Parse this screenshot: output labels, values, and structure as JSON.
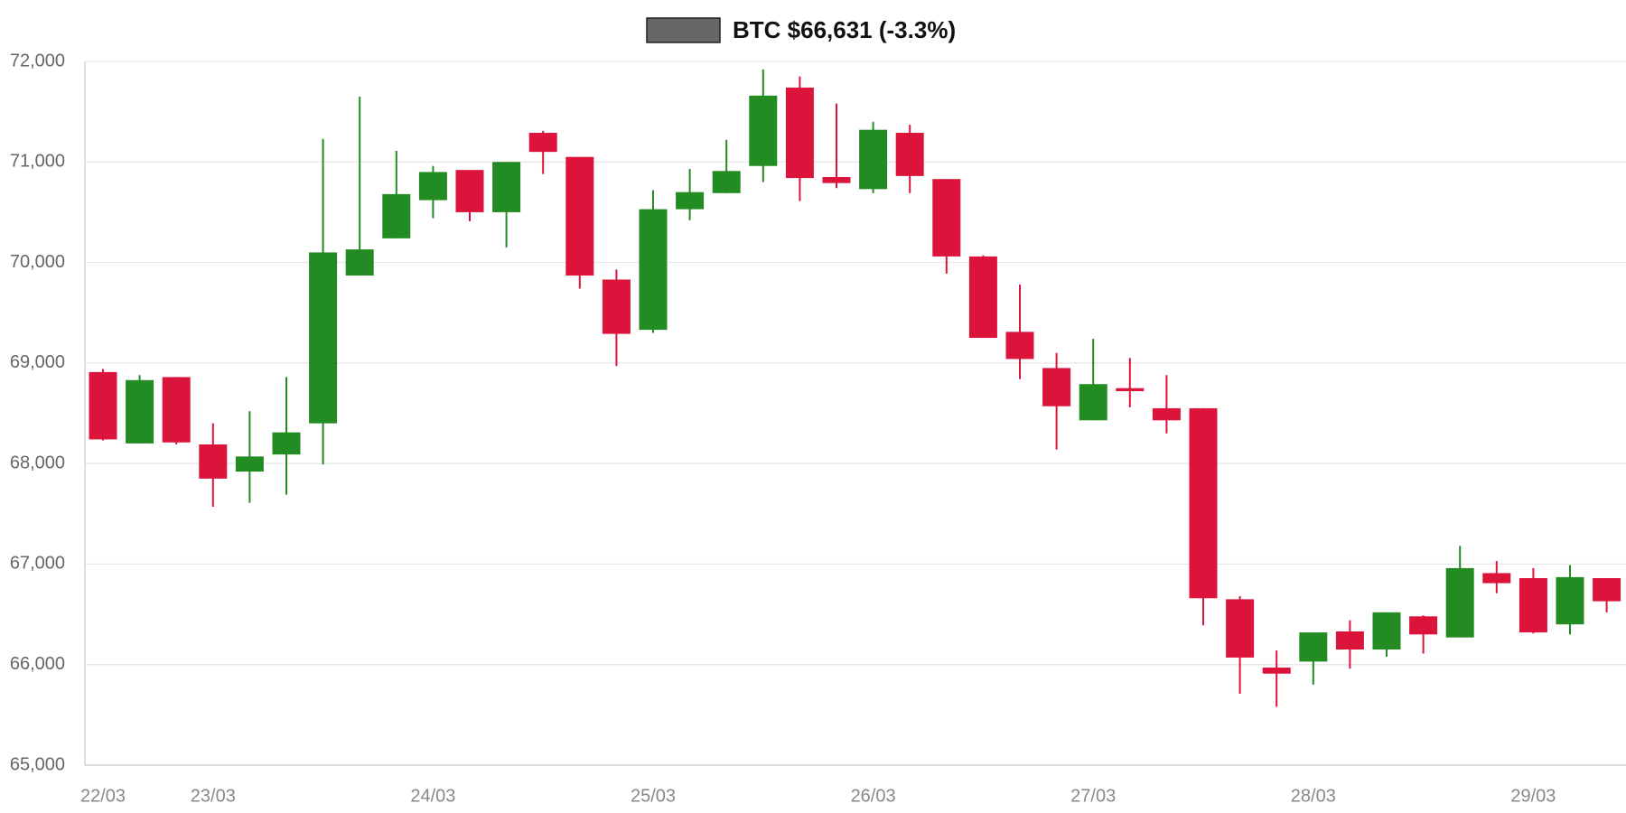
{
  "chart_data": {
    "type": "candlestick",
    "series": [
      {
        "name": "BTC $66,631 (-3.3%)",
        "color": "#666666",
        "open": [
          68910,
          68200,
          68860,
          68190,
          67920,
          68090,
          68400,
          69870,
          70240,
          70620,
          70920,
          70500,
          71290,
          71050,
          69830,
          69330,
          70530,
          70690,
          70960,
          71740,
          70850,
          70730,
          71290,
          70830,
          70060,
          69310,
          68950,
          68430,
          68750,
          68550,
          68550,
          66650,
          65970,
          66030,
          66330,
          66150,
          66480,
          66270,
          66910,
          66860,
          66400,
          66860
        ],
        "high": [
          68940,
          68880,
          68860,
          68400,
          68520,
          68860,
          71230,
          71650,
          71110,
          70960,
          70920,
          71000,
          71310,
          71050,
          69930,
          70720,
          70930,
          71220,
          71920,
          71850,
          71580,
          71400,
          71370,
          70830,
          70070,
          69780,
          69100,
          69240,
          69050,
          68880,
          68550,
          66680,
          66140,
          66320,
          66440,
          66520,
          66490,
          67180,
          67030,
          66960,
          66990,
          66860
        ],
        "low": [
          68230,
          68200,
          68190,
          67570,
          67610,
          67690,
          67990,
          69870,
          70240,
          70440,
          70410,
          70150,
          70880,
          69740,
          68970,
          69300,
          70420,
          70690,
          70800,
          70610,
          70740,
          70690,
          70690,
          69890,
          69250,
          68840,
          68140,
          68430,
          68560,
          68300,
          66390,
          65710,
          65580,
          65800,
          65960,
          66080,
          66110,
          66270,
          66710,
          66310,
          66300,
          66520
        ],
        "close": [
          68240,
          68830,
          68210,
          67850,
          68070,
          68310,
          70100,
          70130,
          70680,
          70900,
          70500,
          71000,
          71100,
          69870,
          69290,
          70530,
          70700,
          70910,
          71660,
          70840,
          70790,
          71320,
          70860,
          70060,
          69250,
          69040,
          68570,
          68790,
          68720,
          68430,
          66660,
          66070,
          65910,
          66320,
          66150,
          66520,
          66300,
          66960,
          66810,
          66320,
          66870,
          66630
        ]
      }
    ],
    "up_color": "#228b22",
    "down_color": "#dc143c",
    "categories": [
      "22/03",
      null,
      null,
      "23/03",
      null,
      null,
      null,
      null,
      null,
      "24/03",
      null,
      null,
      null,
      null,
      null,
      "25/03",
      null,
      null,
      null,
      null,
      null,
      "26/03",
      null,
      null,
      null,
      null,
      null,
      "27/03",
      null,
      null,
      null,
      null,
      null,
      "28/03",
      null,
      null,
      null,
      null,
      null,
      "29/03",
      null,
      null
    ],
    "ylim": [
      65000,
      72000
    ],
    "yticks": [
      {
        "value": 65000,
        "label": "65,000"
      },
      {
        "value": 66000,
        "label": "66,000"
      },
      {
        "value": 67000,
        "label": "67,000"
      },
      {
        "value": 68000,
        "label": "68,000"
      },
      {
        "value": 69000,
        "label": "69,000"
      },
      {
        "value": 70000,
        "label": "70,000"
      },
      {
        "value": 71000,
        "label": "71,000"
      },
      {
        "value": 72000,
        "label": "72,000"
      }
    ],
    "grid": true
  }
}
